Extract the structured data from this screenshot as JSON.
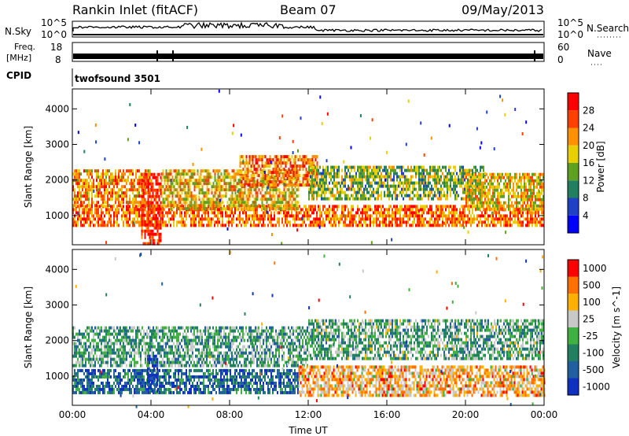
{
  "header": {
    "station": "Rankin Inlet (fitACF)",
    "beam": "Beam 07",
    "date": "09/May/2013"
  },
  "top_panels": {
    "nsky_label": "N.Sky",
    "nsky_ticks": [
      "10^5",
      "10^0"
    ],
    "nsearch_label": "N.Search",
    "nsearch_ticks": [
      "10^5",
      "10^0"
    ],
    "freq_label_line1": "Freq.",
    "freq_label_line2": "[MHz]",
    "freq_ticks": [
      "18",
      "8"
    ],
    "nave_label": "Nave",
    "nave_ticks": [
      "60",
      "0"
    ],
    "cpid_label": "CPID",
    "cpid_value": "twofsound 3501"
  },
  "chart_data": [
    {
      "type": "heatmap",
      "quantity": "Power",
      "ylabel": "Slant Range [km]",
      "yticks": [
        "4000",
        "3000",
        "2000",
        "1000"
      ],
      "ylim": [
        180,
        4560
      ],
      "colorbar_label": "Power [dB]",
      "colorbar_ticks": [
        "28",
        "24",
        "20",
        "16",
        "12",
        "8",
        "4"
      ],
      "colors": [
        "#0000ff",
        "#2040c8",
        "#208060",
        "#60a020",
        "#e8d000",
        "#ff9000",
        "#ff4000",
        "#ff0000"
      ],
      "xticks": [
        "00:00",
        "04:00",
        "08:00",
        "12:00",
        "16:00",
        "20:00",
        "00:00"
      ],
      "bands": [
        {
          "t0": 0.0,
          "t1": 24.0,
          "r0": 700,
          "r1": 1300,
          "level": 0.75
        },
        {
          "t0": 0.0,
          "t1": 4.0,
          "r0": 1300,
          "r1": 2300,
          "level": 0.7
        },
        {
          "t0": 4.5,
          "t1": 11.5,
          "r0": 1200,
          "r1": 2300,
          "level": 0.6
        },
        {
          "t0": 8.5,
          "t1": 12.5,
          "r0": 1900,
          "r1": 2700,
          "level": 0.75
        },
        {
          "t0": 12.0,
          "t1": 21.0,
          "r0": 1500,
          "r1": 2400,
          "level": 0.45
        },
        {
          "t0": 20.0,
          "t1": 24.0,
          "r0": 1200,
          "r1": 2200,
          "level": 0.6
        },
        {
          "t0": 3.5,
          "t1": 4.5,
          "r0": 200,
          "r1": 2200,
          "level": 0.9
        }
      ]
    },
    {
      "type": "heatmap",
      "quantity": "Velocity",
      "ylabel": "Slant Range [km]",
      "yticks": [
        "4000",
        "3000",
        "2000",
        "1000"
      ],
      "ylim": [
        180,
        4560
      ],
      "xlabel": "Time UT",
      "colorbar_label": "Velocity [m s^-1]",
      "colorbar_ticks": [
        "1000",
        "500",
        "100",
        "25",
        "-25",
        "-100",
        "-500",
        "-1000"
      ],
      "colors": [
        "#1030c0",
        "#2060a0",
        "#208060",
        "#40b040",
        "#c8c8c8",
        "#ffb000",
        "#ff7000",
        "#ff0000"
      ],
      "xticks": [
        "00:00",
        "04:00",
        "08:00",
        "12:00",
        "16:00",
        "20:00",
        "00:00"
      ],
      "bands": [
        {
          "t0": 0.0,
          "t1": 12.0,
          "r0": 1300,
          "r1": 2400,
          "level": 0.4
        },
        {
          "t0": 12.0,
          "t1": 24.0,
          "r0": 1500,
          "r1": 2600,
          "level": 0.42
        },
        {
          "t0": 0.0,
          "t1": 11.5,
          "r0": 500,
          "r1": 1200,
          "level": 0.2
        },
        {
          "t0": 11.5,
          "t1": 24.0,
          "r0": 500,
          "r1": 1300,
          "level": 0.7
        },
        {
          "t0": 3.8,
          "t1": 4.3,
          "r0": 600,
          "r1": 1600,
          "level": 0.05
        }
      ]
    }
  ]
}
